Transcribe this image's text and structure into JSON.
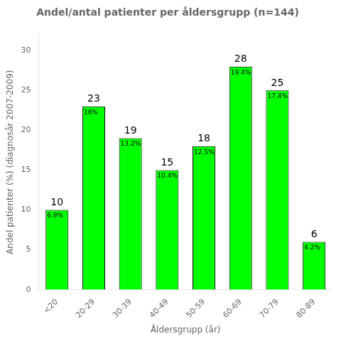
{
  "chart_data": {
    "type": "bar",
    "title": "Andel/antal patienter per åldersgrupp (n=144)",
    "xlabel": "Åldersgrupp (år)",
    "ylabel": "Andel patienter (%) (diagnosår 2007-2009)",
    "categories": [
      "<20",
      "20-29",
      "30-39",
      "40-49",
      "50-59",
      "60-69",
      "70-79",
      "80-89"
    ],
    "values": [
      10,
      23,
      19,
      15,
      18,
      28,
      25,
      6
    ],
    "color": "#00FF00",
    "ylim": [
      0,
      32
    ],
    "yticks": [
      0,
      5,
      10,
      15,
      20,
      25,
      30
    ],
    "grid": false,
    "data_labels": true,
    "annotations": [
      {
        "category": "<20",
        "text": "6.9%"
      },
      {
        "category": "20-29",
        "text": "16%"
      },
      {
        "category": "30-39",
        "text": "13.2%"
      },
      {
        "category": "40-49",
        "text": "10.4%"
      },
      {
        "category": "50-59",
        "text": "12.5%"
      },
      {
        "category": "60-69",
        "text": "19.4%"
      },
      {
        "category": "70-79",
        "text": "17.4%"
      },
      {
        "category": "80-89",
        "text": "4.2%"
      }
    ]
  }
}
